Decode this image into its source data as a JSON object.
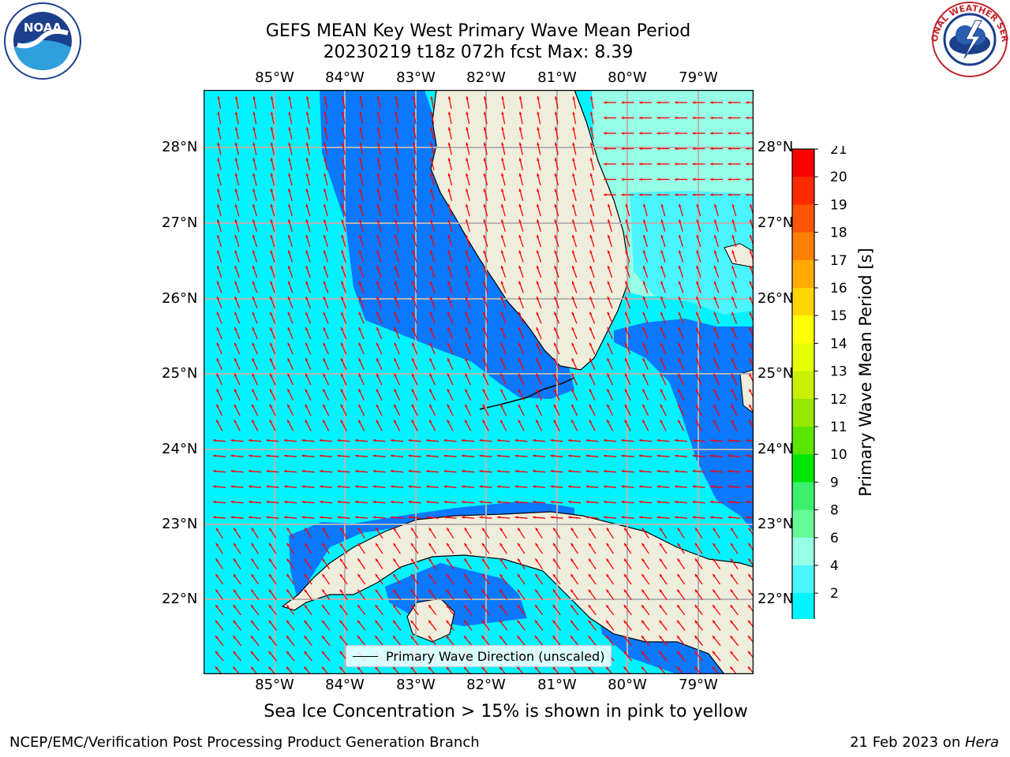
{
  "header": {
    "title_line1": "GEFS MEAN Key West Primary Wave Mean Period",
    "title_line2": "20230219 t18z 072h fcst   Max: 8.39"
  },
  "map": {
    "lon_labels": [
      "85°W",
      "84°W",
      "83°W",
      "82°W",
      "81°W",
      "80°W",
      "79°W"
    ],
    "lat_labels": [
      "28°N",
      "27°N",
      "26°N",
      "25°N",
      "24°N",
      "23°N",
      "22°N"
    ],
    "legend_label": "Primary Wave Direction (unscaled)",
    "colors": {
      "ocean_cyan": "#00f4ff",
      "deep_blue": "#0a78ff",
      "land": "#efeddc",
      "arrow": "#ff0000",
      "grid": "#b4b4b4"
    }
  },
  "colorbar": {
    "title": "Primary Wave Mean Period [s]",
    "ticks": [
      "21",
      "20",
      "19",
      "18",
      "17",
      "16",
      "15",
      "14",
      "13",
      "12",
      "11",
      "10",
      "9",
      "8",
      "6",
      "4",
      "2"
    ],
    "colors": [
      "#ff0000",
      "#ff2a00",
      "#ff5500",
      "#ff7f00",
      "#ffaa00",
      "#ffd400",
      "#ffff00",
      "#e6ff00",
      "#c8f000",
      "#96e600",
      "#5ae600",
      "#00e600",
      "#3cf06e",
      "#64fa96",
      "#96ffe6",
      "#4af5ff",
      "#00f4ff",
      "#0a78ff",
      "#0000f0"
    ]
  },
  "caption": "Sea Ice Concentration > 15% is shown in pink to yellow",
  "footer": {
    "left": "NCEP/EMC/Verification Post Processing Product Generation Branch",
    "right_date": "21 Feb 2023 on ",
    "right_host": "Hera"
  },
  "logos": {
    "noaa": "NOAA",
    "nws": "NATIONAL WEATHER SERVICE"
  }
}
